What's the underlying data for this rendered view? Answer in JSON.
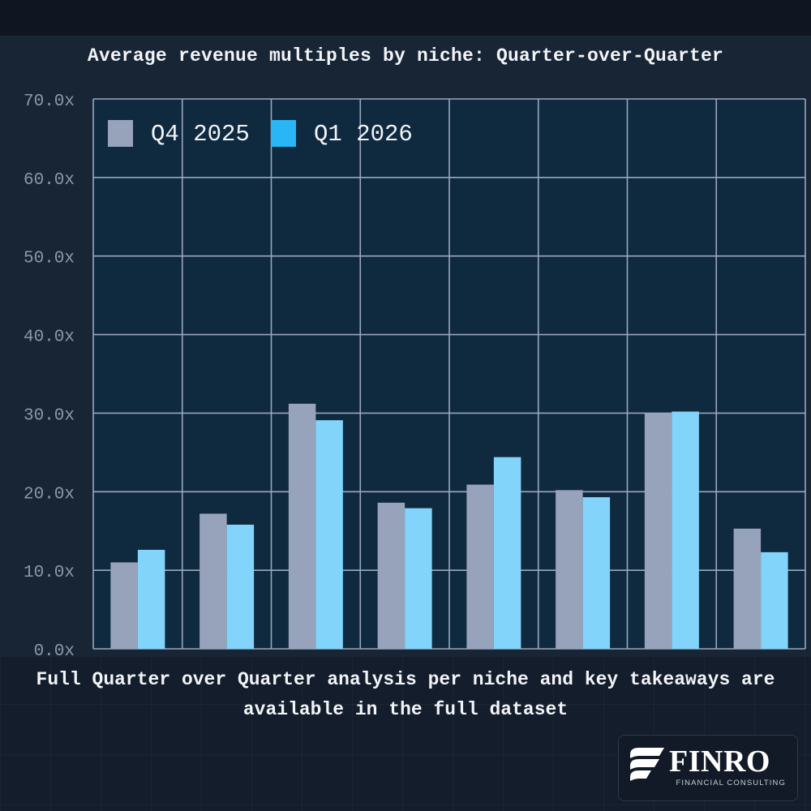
{
  "chart_data": {
    "type": "bar",
    "title": "Average revenue multiples by niche: Quarter-over-Quarter",
    "xlabel": "",
    "ylabel": "",
    "ylim": [
      0,
      70
    ],
    "yticks": [
      0,
      10,
      20,
      30,
      40,
      50,
      60,
      70
    ],
    "ytick_labels": [
      "0.0x",
      "10.0x",
      "20.0x",
      "30.0x",
      "40.0x",
      "50.0x",
      "60.0x",
      "70.0x"
    ],
    "categories": [
      "",
      "",
      "",
      "",
      "",
      "",
      "",
      ""
    ],
    "series": [
      {
        "name": "Q4 2025",
        "color": "#97a3bb",
        "values": [
          11.0,
          17.2,
          31.2,
          18.6,
          20.9,
          20.2,
          30.0,
          15.3
        ]
      },
      {
        "name": "Q1 2026",
        "color": "#82d4fb",
        "values": [
          12.6,
          15.8,
          29.1,
          17.9,
          24.4,
          19.3,
          30.2,
          12.3
        ]
      }
    ],
    "legend": {
      "position": "top-left",
      "swatch_colors": [
        "#97a3bb",
        "#29b6f6"
      ]
    },
    "grid": true
  },
  "footnote": "Full Quarter over Quarter analysis per niche and key takeaways are available in the full dataset",
  "brand": {
    "name": "FINRO",
    "tagline": "FINANCIAL CONSULTING"
  },
  "colors": {
    "background": "#131d2b",
    "plot_background": "#0f293f",
    "grid": "#9aa8bd",
    "text": "#f2f4f7",
    "tick_text": "#8e98a6"
  }
}
